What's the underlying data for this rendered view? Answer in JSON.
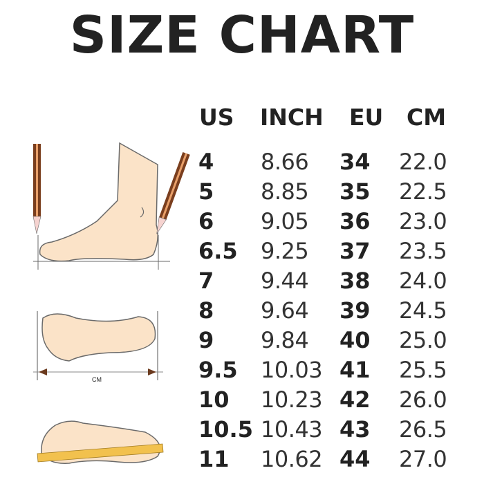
{
  "title": "SIZE CHART",
  "headers": {
    "us": "US",
    "inch": "INCH",
    "eu": "EU",
    "cm": "CM"
  },
  "rows": [
    {
      "us": "4",
      "inch": "8.66",
      "eu": "34",
      "cm": "22.0"
    },
    {
      "us": "5",
      "inch": "8.85",
      "eu": "35",
      "cm": "22.5"
    },
    {
      "us": "6",
      "inch": "9.05",
      "eu": "36",
      "cm": "23.0"
    },
    {
      "us": "6.5",
      "inch": "9.25",
      "eu": "37",
      "cm": "23.5"
    },
    {
      "us": "7",
      "inch": "9.44",
      "eu": "38",
      "cm": "24.0"
    },
    {
      "us": "8",
      "inch": "9.64",
      "eu": "39",
      "cm": "24.5"
    },
    {
      "us": "9",
      "inch": "9.84",
      "eu": "40",
      "cm": "25.0"
    },
    {
      "us": "9.5",
      "inch": "10.03",
      "eu": "41",
      "cm": "25.5"
    },
    {
      "us": "10",
      "inch": "10.23",
      "eu": "42",
      "cm": "26.0"
    },
    {
      "us": "10.5",
      "inch": "10.43",
      "eu": "43",
      "cm": "26.5"
    },
    {
      "us": "11",
      "inch": "10.62",
      "eu": "44",
      "cm": "27.0"
    }
  ],
  "illustration": {
    "measure_label": "CM"
  },
  "colors": {
    "skin": "#fbe3c8",
    "outline": "#6a6a6a",
    "pencil": "#7a3e1e",
    "ruler": "#f2c14e"
  }
}
